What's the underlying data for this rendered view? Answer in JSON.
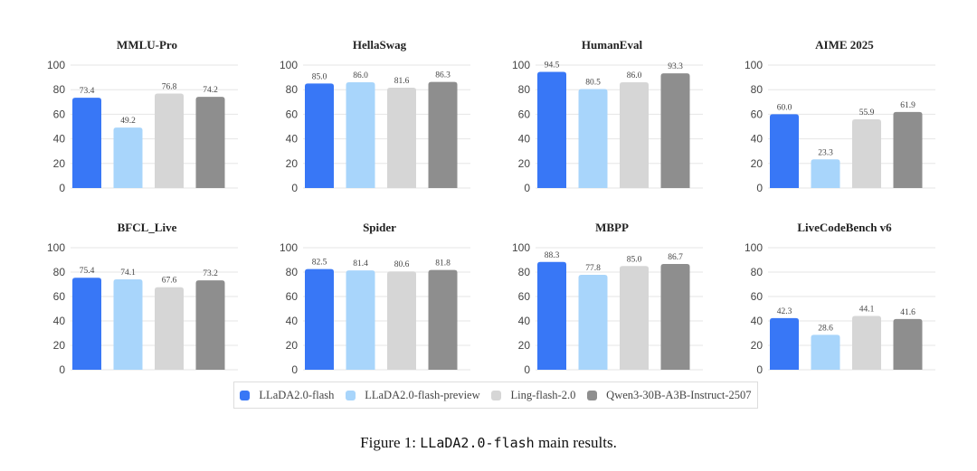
{
  "chart_data": [
    {
      "type": "bar",
      "title": "MMLU-Pro",
      "values": [
        73.4,
        49.2,
        76.8,
        74.2
      ],
      "ylim": [
        0,
        100
      ],
      "yticks": [
        0,
        20,
        40,
        60,
        80,
        100
      ]
    },
    {
      "type": "bar",
      "title": "HellaSwag",
      "values": [
        85.0,
        86.0,
        81.6,
        86.3
      ],
      "ylim": [
        0,
        100
      ],
      "yticks": [
        0,
        20,
        40,
        60,
        80,
        100
      ]
    },
    {
      "type": "bar",
      "title": "HumanEval",
      "values": [
        94.5,
        80.5,
        86.0,
        93.3
      ],
      "ylim": [
        0,
        100
      ],
      "yticks": [
        0,
        20,
        40,
        60,
        80,
        100
      ]
    },
    {
      "type": "bar",
      "title": "AIME 2025",
      "values": [
        60.0,
        23.3,
        55.9,
        61.9
      ],
      "ylim": [
        0,
        100
      ],
      "yticks": [
        0,
        20,
        40,
        60,
        80,
        100
      ]
    },
    {
      "type": "bar",
      "title": "BFCL_Live",
      "values": [
        75.4,
        74.1,
        67.6,
        73.2
      ],
      "ylim": [
        0,
        100
      ],
      "yticks": [
        0,
        20,
        40,
        60,
        80,
        100
      ]
    },
    {
      "type": "bar",
      "title": "Spider",
      "values": [
        82.5,
        81.4,
        80.6,
        81.8
      ],
      "ylim": [
        0,
        100
      ],
      "yticks": [
        0,
        20,
        40,
        60,
        80,
        100
      ]
    },
    {
      "type": "bar",
      "title": "MBPP",
      "values": [
        88.3,
        77.8,
        85.0,
        86.7
      ],
      "ylim": [
        0,
        100
      ],
      "yticks": [
        0,
        20,
        40,
        60,
        80,
        100
      ]
    },
    {
      "type": "bar",
      "title": "LiveCodeBench v6",
      "values": [
        42.3,
        28.6,
        44.1,
        41.6
      ],
      "ylim": [
        0,
        100
      ],
      "yticks": [
        0,
        20,
        40,
        60,
        80,
        100
      ]
    }
  ],
  "series": [
    {
      "name": "LLaDA2.0-flash",
      "color": "#3877F6"
    },
    {
      "name": "LLaDA2.0-flash-preview",
      "color": "#A8D5FB"
    },
    {
      "name": "Ling-flash-2.0",
      "color": "#D6D6D6"
    },
    {
      "name": "Qwen3-30B-A3B-Instruct-2507",
      "color": "#8E8E8E"
    }
  ],
  "grid": true,
  "legend_position": "bottom",
  "caption": {
    "prefix": "Figure 1: ",
    "code": "LLaDA2.0-flash",
    "suffix": " main results."
  }
}
